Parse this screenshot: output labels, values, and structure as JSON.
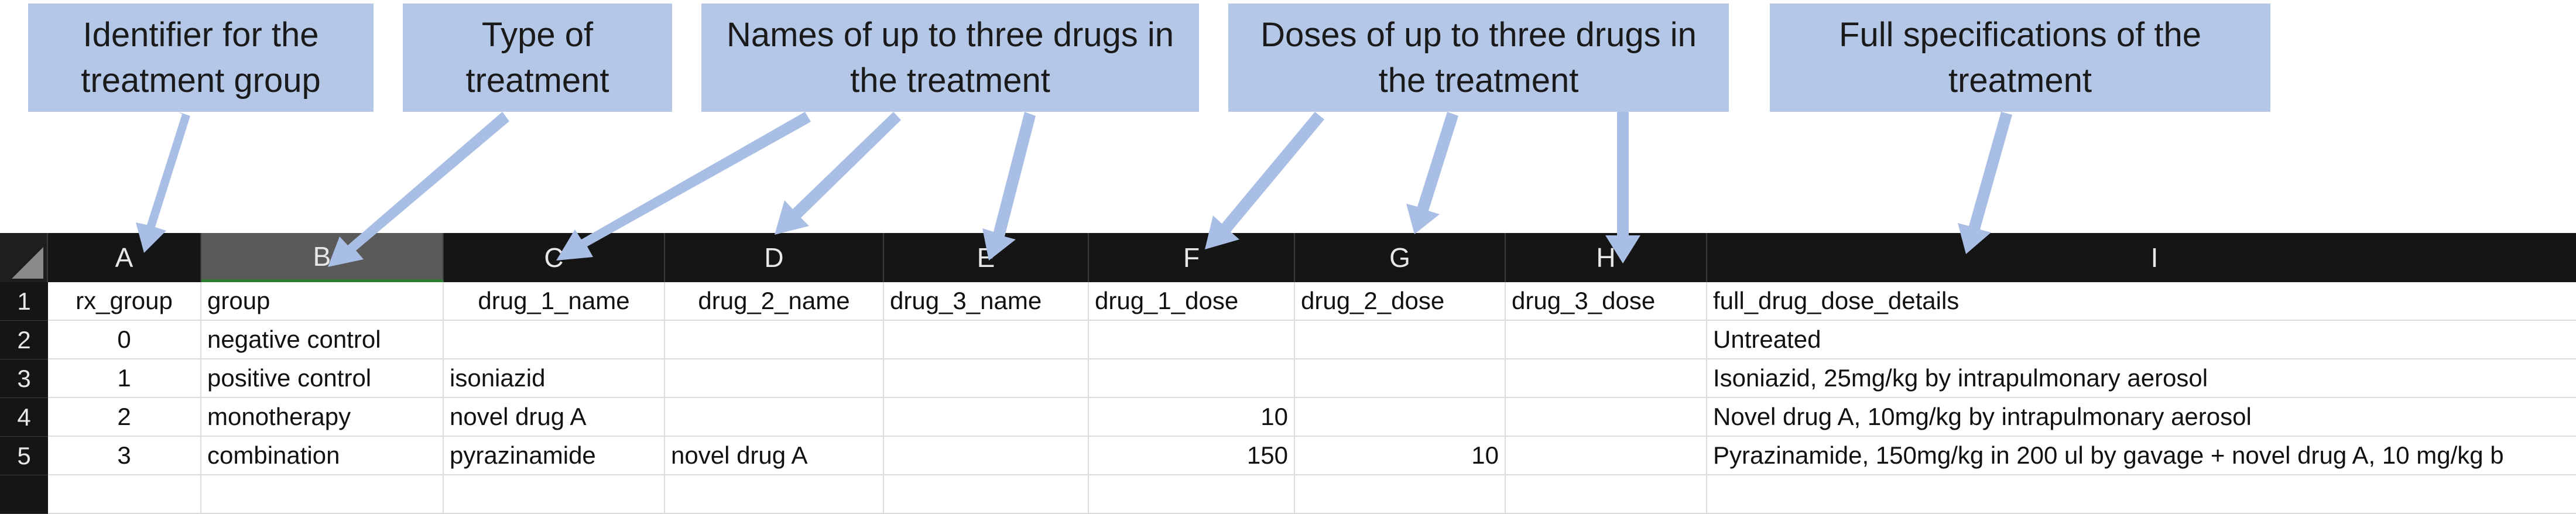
{
  "callouts": [
    {
      "line1": "Identifier for the",
      "line2": "treatment group"
    },
    {
      "line1": "Type of",
      "line2": "treatment"
    },
    {
      "line1": "Names of up to three drugs in",
      "line2": "the treatment"
    },
    {
      "line1": "Doses of up to three drugs in",
      "line2": "the treatment"
    },
    {
      "line1": "Full specifications of the",
      "line2": "treatment"
    }
  ],
  "colors": {
    "callout_fill": "#b4c7e7",
    "arrow": "#a9bee4",
    "header_bg": "#151515",
    "selected_col": "#5a5a5a"
  },
  "columns": [
    "A",
    "B",
    "C",
    "D",
    "E",
    "F",
    "G",
    "H",
    "I"
  ],
  "rows": [
    {
      "num": "1",
      "cells": [
        "rx_group",
        "group",
        "drug_1_name",
        "drug_2_name",
        "drug_3_name",
        "drug_1_dose",
        "drug_2_dose",
        "drug_3_dose",
        "full_drug_dose_details"
      ]
    },
    {
      "num": "2",
      "cells": [
        "0",
        "negative control",
        "",
        "",
        "",
        "",
        "",
        "",
        "Untreated"
      ]
    },
    {
      "num": "3",
      "cells": [
        "1",
        "positive control",
        "isoniazid",
        "",
        "",
        "",
        "",
        "",
        "Isoniazid, 25mg/kg by intrapulmonary aerosol"
      ]
    },
    {
      "num": "4",
      "cells": [
        "2",
        "monotherapy",
        "novel drug A",
        "",
        "",
        "10",
        "",
        "",
        "Novel drug A, 10mg/kg by intrapulmonary aerosol"
      ]
    },
    {
      "num": "5",
      "cells": [
        "3",
        "combination",
        "pyrazinamide",
        "novel drug A",
        "",
        "150",
        "10",
        "",
        "Pyrazinamide, 150mg/kg in 200 ul by gavage + novel drug A, 10 mg/kg b"
      ]
    }
  ]
}
